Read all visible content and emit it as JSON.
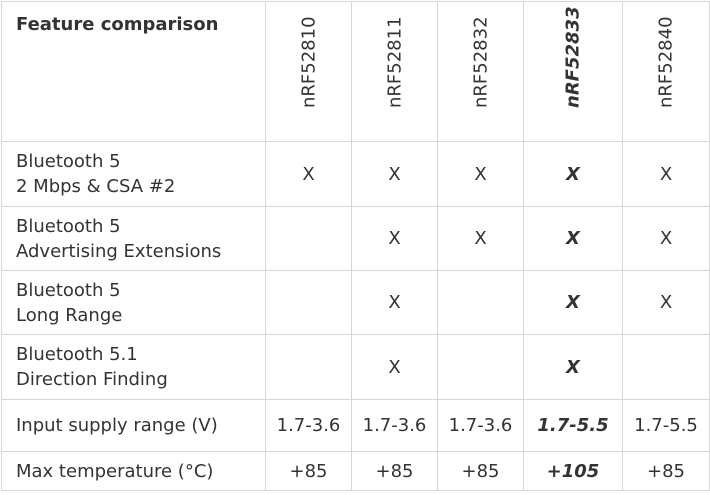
{
  "header": {
    "title": "Feature comparison",
    "columns": [
      "nRF52810",
      "nRF52811",
      "nRF52832",
      "nRF52833",
      "nRF52840"
    ]
  },
  "table": {
    "rows": [
      {
        "label": [
          "Bluetooth 5",
          "2 Mbps & CSA #2"
        ],
        "cells": [
          "X",
          "X",
          "X",
          "X",
          "X"
        ]
      },
      {
        "label": [
          "Bluetooth 5",
          "Advertising Extensions"
        ],
        "cells": [
          null,
          "X",
          "X",
          "X",
          "X"
        ]
      },
      {
        "label": [
          "Bluetooth 5",
          "Long Range"
        ],
        "cells": [
          null,
          "X",
          null,
          "X",
          "X"
        ]
      },
      {
        "label": [
          "Bluetooth 5.1",
          "Direction Finding"
        ],
        "cells": [
          null,
          "X",
          null,
          "X",
          null
        ]
      },
      {
        "label": [
          "Input supply range (V)"
        ],
        "cells": [
          "1.7-3.6",
          "1.7-3.6",
          "1.7-3.6",
          "1.7-5.5",
          "1.7-5.5"
        ]
      },
      {
        "label": [
          "Max temperature (°C)"
        ],
        "cells": [
          "+85",
          "+85",
          "+85",
          "+105",
          "+85"
        ]
      }
    ]
  }
}
